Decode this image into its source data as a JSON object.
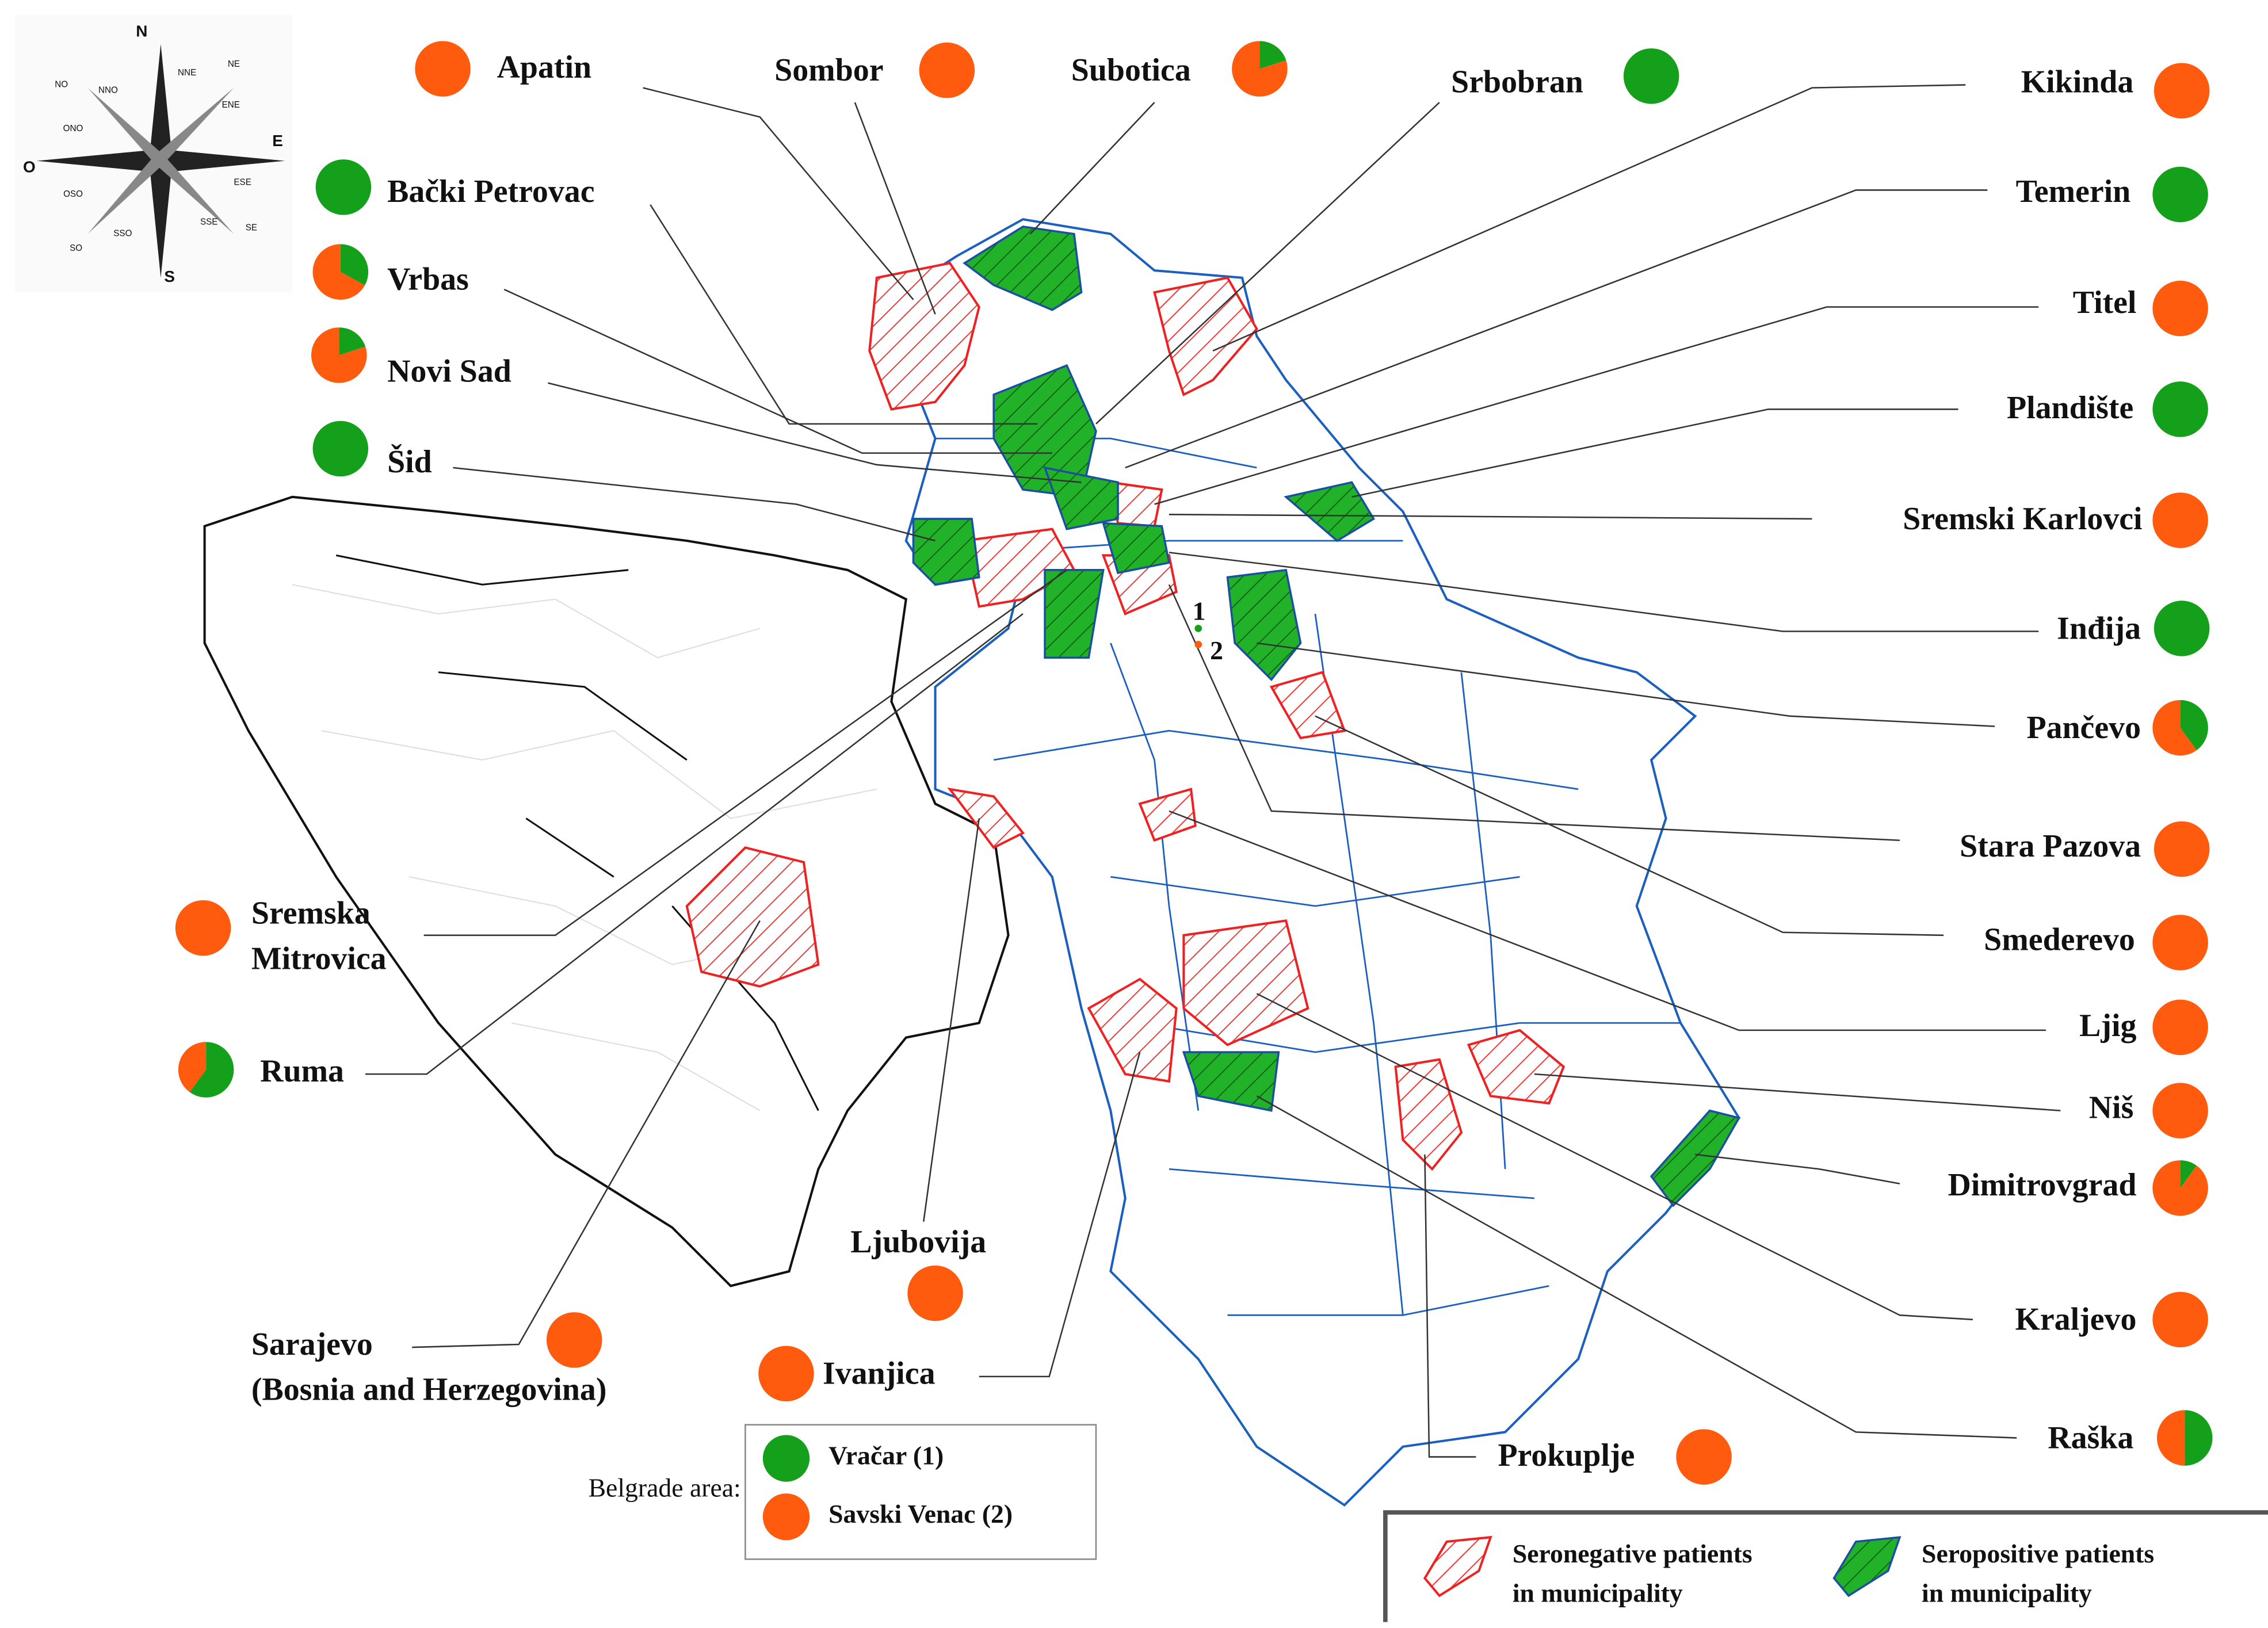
{
  "compass": {
    "labels": [
      "N",
      "E",
      "S",
      "O",
      "NE",
      "NNE",
      "NO",
      "NNO",
      "ENE",
      "ESE",
      "SE",
      "SSE",
      "SO",
      "SSO",
      "OSO",
      "ONO"
    ]
  },
  "colors": {
    "seropositive": "#15a01c",
    "seronegative": "#ff5b0f"
  },
  "places": [
    {
      "lines": [
        "Apatin"
      ],
      "seropositive_pct": 0
    },
    {
      "lines": [
        "Sombor"
      ],
      "seropositive_pct": 0
    },
    {
      "lines": [
        "Subotica"
      ],
      "seropositive_pct": 20
    },
    {
      "lines": [
        "Srbobran"
      ],
      "seropositive_pct": 100
    },
    {
      "lines": [
        "Kikinda"
      ],
      "seropositive_pct": 0
    },
    {
      "lines": [
        "Bački Petrovac"
      ],
      "seropositive_pct": 100
    },
    {
      "lines": [
        "Temerin"
      ],
      "seropositive_pct": 100
    },
    {
      "lines": [
        "Vrbas"
      ],
      "seropositive_pct": 33
    },
    {
      "lines": [
        "Titel"
      ],
      "seropositive_pct": 0
    },
    {
      "lines": [
        "Novi Sad"
      ],
      "seropositive_pct": 20
    },
    {
      "lines": [
        "Plandište"
      ],
      "seropositive_pct": 100
    },
    {
      "lines": [
        "Šid"
      ],
      "seropositive_pct": 100
    },
    {
      "lines": [
        "Sremski Karlovci"
      ],
      "seropositive_pct": 0
    },
    {
      "lines": [
        "Inđija"
      ],
      "seropositive_pct": 100
    },
    {
      "lines": [
        "Pančevo"
      ],
      "seropositive_pct": 40
    },
    {
      "lines": [
        "Stara Pazova"
      ],
      "seropositive_pct": 0
    },
    {
      "lines": [
        "Smederevo"
      ],
      "seropositive_pct": 0
    },
    {
      "lines": [
        "Ljig"
      ],
      "seropositive_pct": 0
    },
    {
      "lines": [
        "Niš"
      ],
      "seropositive_pct": 0
    },
    {
      "lines": [
        "Dimitrovgrad"
      ],
      "seropositive_pct": 10
    },
    {
      "lines": [
        "Kraljevo"
      ],
      "seropositive_pct": 0
    },
    {
      "lines": [
        "Raška"
      ],
      "seropositive_pct": 50
    },
    {
      "lines": [
        "Prokuplje"
      ],
      "seropositive_pct": 0
    },
    {
      "lines": [
        "Ivanjica"
      ],
      "seropositive_pct": 0
    },
    {
      "lines": [
        "Ljubovija"
      ],
      "seropositive_pct": 0
    },
    {
      "lines": [
        "Sarajevo",
        "(Bosnia and Herzegovina)"
      ],
      "seropositive_pct": 0
    },
    {
      "lines": [
        "Ruma"
      ],
      "seropositive_pct": 60
    },
    {
      "lines": [
        "Sremska",
        "Mitrovica"
      ],
      "seropositive_pct": 0
    }
  ],
  "belgrade": {
    "title": "Belgrade area:",
    "items": [
      {
        "name": "Vračar (1)",
        "seropositive_pct": 100
      },
      {
        "name": "Savski Venac (2)",
        "seropositive_pct": 0
      }
    ]
  },
  "map_markers": [
    "1",
    "2"
  ],
  "legend": {
    "seronegative": [
      "Seronegative patients",
      "in municipality"
    ],
    "seropositive": [
      "Seropositive patients",
      "in municipality"
    ]
  }
}
